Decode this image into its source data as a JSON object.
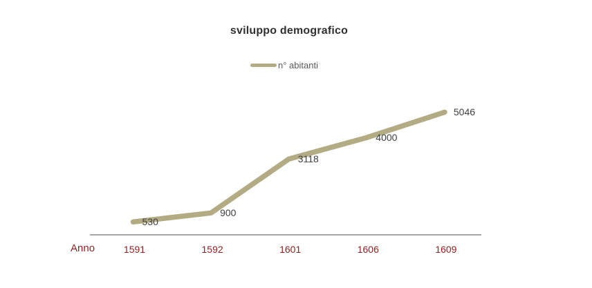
{
  "chart_data": {
    "type": "line",
    "title": "sviluppo demografico",
    "xlabel": "Anno",
    "ylabel": "",
    "categories": [
      "1591",
      "1592",
      "1601",
      "1606",
      "1609"
    ],
    "series": [
      {
        "name": "n° abitanti",
        "values": [
          530,
          900,
          3118,
          4000,
          5046
        ]
      }
    ],
    "data_labels_shown": true,
    "ylim": [
      0,
      5600
    ],
    "grid": false,
    "y_axis_shown": false,
    "legend_position": "top",
    "colors": {
      "series_line": "#b2ab83",
      "title_text": "#303030",
      "data_label_text": "#3f3f3f",
      "legend_text": "#595959",
      "axis_line": "#a6a6a6",
      "category_label_text": "#8e1f1f"
    }
  }
}
